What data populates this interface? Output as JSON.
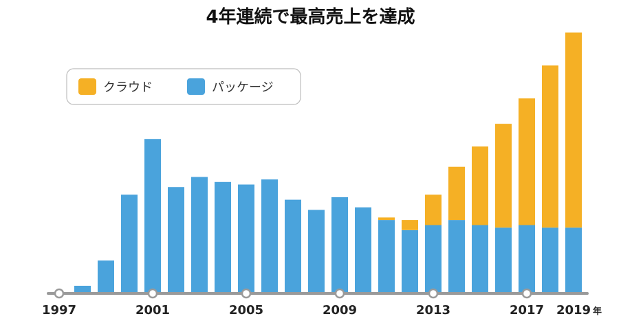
{
  "title": "4年連続で最高売上を達成",
  "colors": {
    "cloud": "#f5b025",
    "package": "#4aa3dc",
    "axis": "#9a9a9a",
    "grid": "#eeeeee"
  },
  "chart_data": {
    "type": "bar",
    "stacked": true,
    "categories": [
      "1997",
      "1998",
      "1999",
      "2000",
      "2001",
      "2002",
      "2003",
      "2004",
      "2005",
      "2006",
      "2007",
      "2008",
      "2009",
      "2010",
      "2011",
      "2012",
      "2013",
      "2014",
      "2015",
      "2016",
      "2017",
      "2018",
      "2019"
    ],
    "series": [
      {
        "name": "パッケージ",
        "values": [
          0,
          3,
          13,
          39,
          61,
          42,
          46,
          44,
          43,
          45,
          37,
          33,
          38,
          34,
          29,
          25,
          27,
          29,
          27,
          26,
          27,
          26,
          26
        ]
      },
      {
        "name": "クラウド",
        "values": [
          0,
          0,
          0,
          0,
          0,
          0,
          0,
          0,
          0,
          0,
          0,
          0,
          0,
          0,
          1,
          4,
          12,
          21,
          31,
          41,
          50,
          64,
          77
        ]
      }
    ],
    "x_tick_labels": [
      "1997",
      "2001",
      "2005",
      "2009",
      "2013",
      "2017",
      "2019"
    ],
    "x_unit": "年",
    "ylim": [
      0,
      105
    ],
    "grid": false,
    "legend_position": "top-left"
  }
}
